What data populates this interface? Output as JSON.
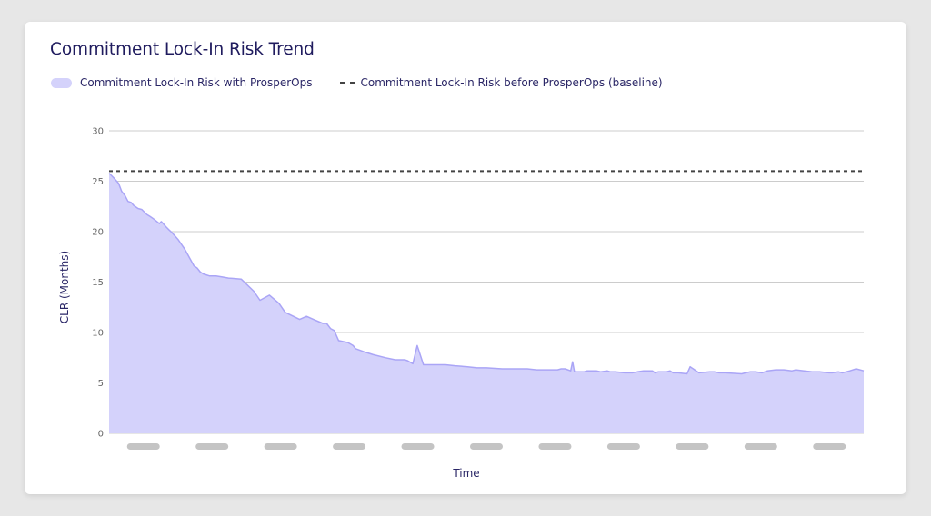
{
  "title": "Commitment Lock-In Risk Trend",
  "legend": {
    "area_label": "Commitment Lock-In Risk with ProsperOps",
    "baseline_label": "Commitment Lock-In Risk before ProsperOps (baseline)"
  },
  "colors": {
    "area_fill": "#d4d2fb",
    "area_stroke": "#aaa5f6",
    "baseline": "#444444",
    "grid": "#cccccc",
    "title": "#1f1b5e",
    "redacted_label": "#c4c4c4"
  },
  "chart_data": {
    "type": "area",
    "xlabel": "Time",
    "ylabel": "CLR (Months)",
    "ylim": [
      0,
      30
    ],
    "yticks": [
      "30",
      "25",
      "20",
      "15",
      "10",
      "5",
      "0"
    ],
    "x_tick_labels": "redacted (11 gray placeholder bars)",
    "grid": "horizontal",
    "legend_position": "top-left",
    "baseline": {
      "name": "Commitment Lock-In Risk before ProsperOps (baseline)",
      "value": 26
    },
    "series": [
      {
        "name": "Commitment Lock-In Risk with ProsperOps",
        "x": [
          0,
          0.8,
          1.5,
          2,
          2.5,
          3,
          3.5,
          3.9,
          4.6,
          5.2,
          6,
          6.5,
          7,
          8,
          8.3,
          8.6,
          9,
          9.5,
          10,
          11,
          12,
          13.5,
          14,
          14.5,
          15,
          16,
          17,
          18,
          19,
          21,
          23,
          24,
          25.5,
          27,
          28,
          30.3,
          31.4,
          32.5,
          34,
          34.6,
          35.2,
          35.8,
          36.5,
          38,
          38.8,
          39.2,
          40.5,
          42,
          44,
          45.5,
          47,
          47.5,
          48.3,
          49,
          50,
          52,
          53.5,
          55,
          57,
          58.5,
          60,
          62.5,
          64.5,
          66.5,
          68,
          70,
          71.3,
          71.9,
          72.5,
          73.4,
          73.7,
          74,
          75.5,
          76,
          76.8,
          77.5,
          78.2,
          79.2,
          79.7,
          80.5,
          82,
          83.2,
          84,
          85,
          86.4,
          86.8,
          87.3,
          88.6,
          89.2,
          89.7,
          90.5,
          91.9,
          92.4,
          93.8,
          95.5,
          96.3,
          97,
          98,
          100.6,
          101.2,
          101.9,
          102.8,
          103.8,
          104.7,
          106,
          107.3,
          108.6,
          109.2,
          110.5,
          111.8,
          113,
          114.5,
          115,
          116,
          116.6,
          117.2,
          117.8,
          118.8,
          120
        ],
        "values": [
          25.8,
          25.3,
          24.8,
          24.0,
          23.6,
          23.0,
          22.9,
          22.6,
          22.3,
          22.2,
          21.7,
          21.5,
          21.3,
          20.8,
          21.0,
          20.8,
          20.5,
          20.2,
          19.9,
          19.2,
          18.3,
          16.6,
          16.4,
          16.0,
          15.8,
          15.6,
          15.6,
          15.5,
          15.4,
          15.3,
          14.1,
          13.2,
          13.7,
          12.9,
          12.0,
          11.3,
          11.6,
          11.3,
          10.9,
          10.9,
          10.4,
          10.2,
          9.2,
          9.0,
          8.7,
          8.4,
          8.1,
          7.8,
          7.5,
          7.3,
          7.3,
          7.2,
          6.9,
          8.7,
          6.8,
          6.8,
          6.8,
          6.7,
          6.6,
          6.5,
          6.5,
          6.4,
          6.4,
          6.4,
          6.3,
          6.3,
          6.3,
          6.4,
          6.4,
          6.2,
          7.1,
          6.1,
          6.1,
          6.2,
          6.2,
          6.2,
          6.1,
          6.2,
          6.1,
          6.1,
          6.0,
          6.0,
          6.1,
          6.2,
          6.2,
          6.0,
          6.1,
          6.1,
          6.2,
          6.0,
          6.0,
          5.9,
          6.6,
          6.0,
          6.1,
          6.1,
          6.0,
          6.0,
          5.9,
          6.0,
          6.1,
          6.1,
          6.0,
          6.2,
          6.3,
          6.3,
          6.2,
          6.3,
          6.2,
          6.1,
          6.1,
          6.0,
          6.0,
          6.1,
          6.0,
          6.1,
          6.2,
          6.4,
          6.2
        ]
      }
    ]
  }
}
